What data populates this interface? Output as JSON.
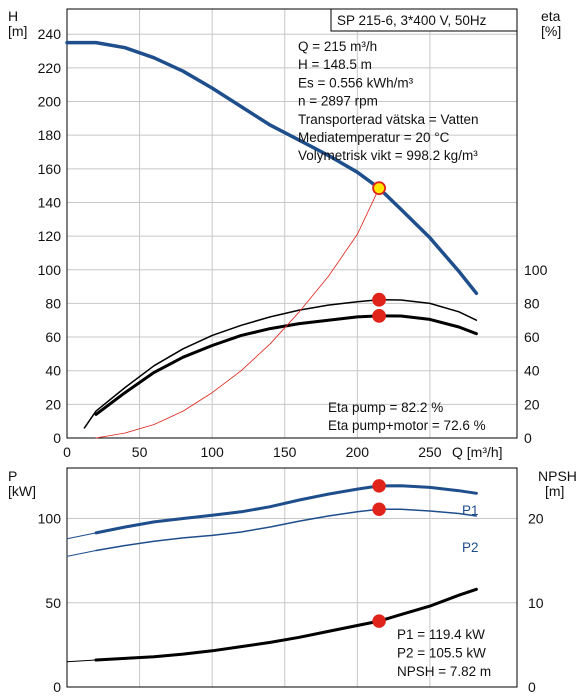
{
  "chart_data": [
    {
      "panel": "top",
      "type": "line",
      "title_box": "SP 215-6, 3*400 V, 50Hz",
      "info": [
        "Q = 215 m³/h",
        "H = 148.5 m",
        "Es = 0.556 kWh/m³",
        "n = 2897 rpm",
        "Transporterad vätska = Vatten",
        "Mediatemperatur = 20 °C",
        "Volymetrisk vikt = 998.2 kg/m³"
      ],
      "efficiency_labels": [
        "Eta pump = 82.2 %",
        "Eta pump+motor = 72.6 %"
      ],
      "left_axis": {
        "label": "H",
        "unit": "[m]",
        "ticks": [
          "0",
          "20",
          "40",
          "60",
          "80",
          "100",
          "120",
          "140",
          "160",
          "180",
          "200",
          "220",
          "240"
        ],
        "ylim": [
          0,
          255
        ]
      },
      "right_axis": {
        "label": "eta",
        "unit": "[%]",
        "ticks": [
          "0",
          "20",
          "40",
          "60",
          "80",
          "100"
        ],
        "ylim": [
          0,
          255
        ]
      },
      "x_axis": {
        "ticks": [
          "0",
          "50",
          "100",
          "150",
          "200",
          "250"
        ],
        "label": "Q [m³/h]",
        "xlim": [
          0,
          310
        ]
      },
      "grid": true,
      "series": [
        {
          "key": "head",
          "color": "#1f4e8c",
          "width": 3.5,
          "x": [
            0,
            20,
            40,
            60,
            80,
            100,
            120,
            140,
            160,
            180,
            200,
            215,
            230,
            250,
            270,
            282
          ],
          "y": [
            235,
            235,
            232,
            226,
            218,
            208,
            197,
            186,
            177,
            168,
            158,
            148.5,
            136,
            119,
            99,
            86
          ]
        },
        {
          "key": "head-low-extension",
          "color": "#1f4e8c",
          "width": 1.5,
          "x": [
            0,
            20
          ],
          "y": [
            235,
            235
          ]
        },
        {
          "key": "eta-pump",
          "color": "#000000",
          "width": 1.5,
          "x": [
            12,
            20,
            40,
            60,
            80,
            100,
            120,
            140,
            160,
            180,
            200,
            215,
            230,
            250,
            270,
            282
          ],
          "y": [
            6,
            16,
            30,
            43,
            53,
            61,
            67,
            72,
            76,
            79,
            81,
            82.2,
            82,
            80,
            75,
            70
          ]
        },
        {
          "key": "eta-pump-motor",
          "color": "#000000",
          "width": 3,
          "x": [
            20,
            40,
            60,
            80,
            100,
            120,
            140,
            160,
            180,
            200,
            215,
            230,
            250,
            270,
            282
          ],
          "y": [
            14,
            27,
            39,
            48,
            55,
            61,
            65,
            68,
            70,
            72,
            72.6,
            72.5,
            70.5,
            66,
            62
          ]
        },
        {
          "key": "system-curve",
          "color": "#e0241b",
          "width": 0.8,
          "x": [
            20,
            40,
            60,
            80,
            100,
            120,
            140,
            160,
            180,
            200,
            215
          ],
          "y": [
            0,
            3,
            8,
            16,
            27,
            40,
            56,
            75,
            96,
            121,
            148.5
          ]
        }
      ],
      "duty_points": [
        {
          "key": "head-point",
          "x": 215,
          "y": 148.5,
          "fill": "#ffe600",
          "stroke": "#e0241b"
        },
        {
          "key": "eta-pump-point",
          "x": 215,
          "y": 82.2,
          "fill": "#e0241b",
          "stroke": "#e0241b"
        },
        {
          "key": "eta-pump-motor-point",
          "x": 215,
          "y": 72.6,
          "fill": "#e0241b",
          "stroke": "#e0241b"
        }
      ]
    },
    {
      "panel": "bottom",
      "type": "line",
      "left_axis": {
        "label": "P",
        "unit": "[kW]",
        "ticks": [
          "0",
          "50",
          "100"
        ],
        "ylim": [
          0,
          130
        ]
      },
      "right_axis": {
        "label": "NPSH",
        "unit": "[m]",
        "ticks": [
          "0",
          "10",
          "20"
        ],
        "ylim": [
          0,
          26
        ]
      },
      "x_axis": {
        "xlim": [
          0,
          310
        ]
      },
      "grid": true,
      "series_labels": [
        "P1",
        "P2"
      ],
      "info": [
        "P1 = 119.4 kW",
        "P2 = 105.5 kW",
        "NPSH = 7.82 m"
      ],
      "series": [
        {
          "key": "P1",
          "label": "P1",
          "color": "#1f4e8c",
          "width": 3,
          "axis": "left",
          "x": [
            20,
            40,
            60,
            80,
            100,
            120,
            140,
            160,
            180,
            200,
            215,
            230,
            250,
            270,
            282
          ],
          "y": [
            91.5,
            95,
            98,
            100,
            102,
            104,
            107,
            111,
            114.5,
            117.5,
            119.4,
            119.5,
            118.5,
            116.5,
            115
          ]
        },
        {
          "key": "P1-low-extension",
          "color": "#1f4e8c",
          "width": 1,
          "axis": "left",
          "x": [
            0,
            20
          ],
          "y": [
            88,
            91.5
          ]
        },
        {
          "key": "P2",
          "label": "P2",
          "color": "#1f4e8c",
          "width": 1.5,
          "axis": "left",
          "x": [
            20,
            40,
            60,
            80,
            100,
            120,
            140,
            160,
            180,
            200,
            215,
            230,
            250,
            270,
            282
          ],
          "y": [
            81,
            84,
            86.5,
            88.5,
            90,
            92,
            95,
            98.5,
            101.5,
            104,
            105.5,
            105.5,
            104.5,
            103,
            101.5
          ]
        },
        {
          "key": "P2-low-extension",
          "color": "#1f4e8c",
          "width": 1,
          "axis": "left",
          "x": [
            0,
            20
          ],
          "y": [
            77.5,
            81
          ]
        },
        {
          "key": "NPSH",
          "color": "#000000",
          "width": 3,
          "axis": "right",
          "x": [
            20,
            40,
            60,
            80,
            100,
            120,
            140,
            160,
            180,
            200,
            215,
            230,
            250,
            270,
            282
          ],
          "y": [
            3.2,
            3.4,
            3.6,
            3.9,
            4.3,
            4.8,
            5.3,
            5.9,
            6.6,
            7.3,
            7.82,
            8.6,
            9.6,
            10.9,
            11.6
          ]
        },
        {
          "key": "NPSH-low-extension",
          "color": "#000000",
          "width": 1,
          "axis": "right",
          "x": [
            0,
            20
          ],
          "y": [
            3.0,
            3.2
          ]
        }
      ],
      "duty_points": [
        {
          "key": "P1-point",
          "x": 215,
          "y": 119.4,
          "axis": "left",
          "fill": "#e0241b",
          "stroke": "#e0241b"
        },
        {
          "key": "P2-point",
          "x": 215,
          "y": 105.5,
          "axis": "left",
          "fill": "#e0241b",
          "stroke": "#e0241b"
        },
        {
          "key": "NPSH-point",
          "x": 215,
          "y": 7.82,
          "axis": "right",
          "fill": "#e0241b",
          "stroke": "#e0241b"
        }
      ]
    }
  ]
}
